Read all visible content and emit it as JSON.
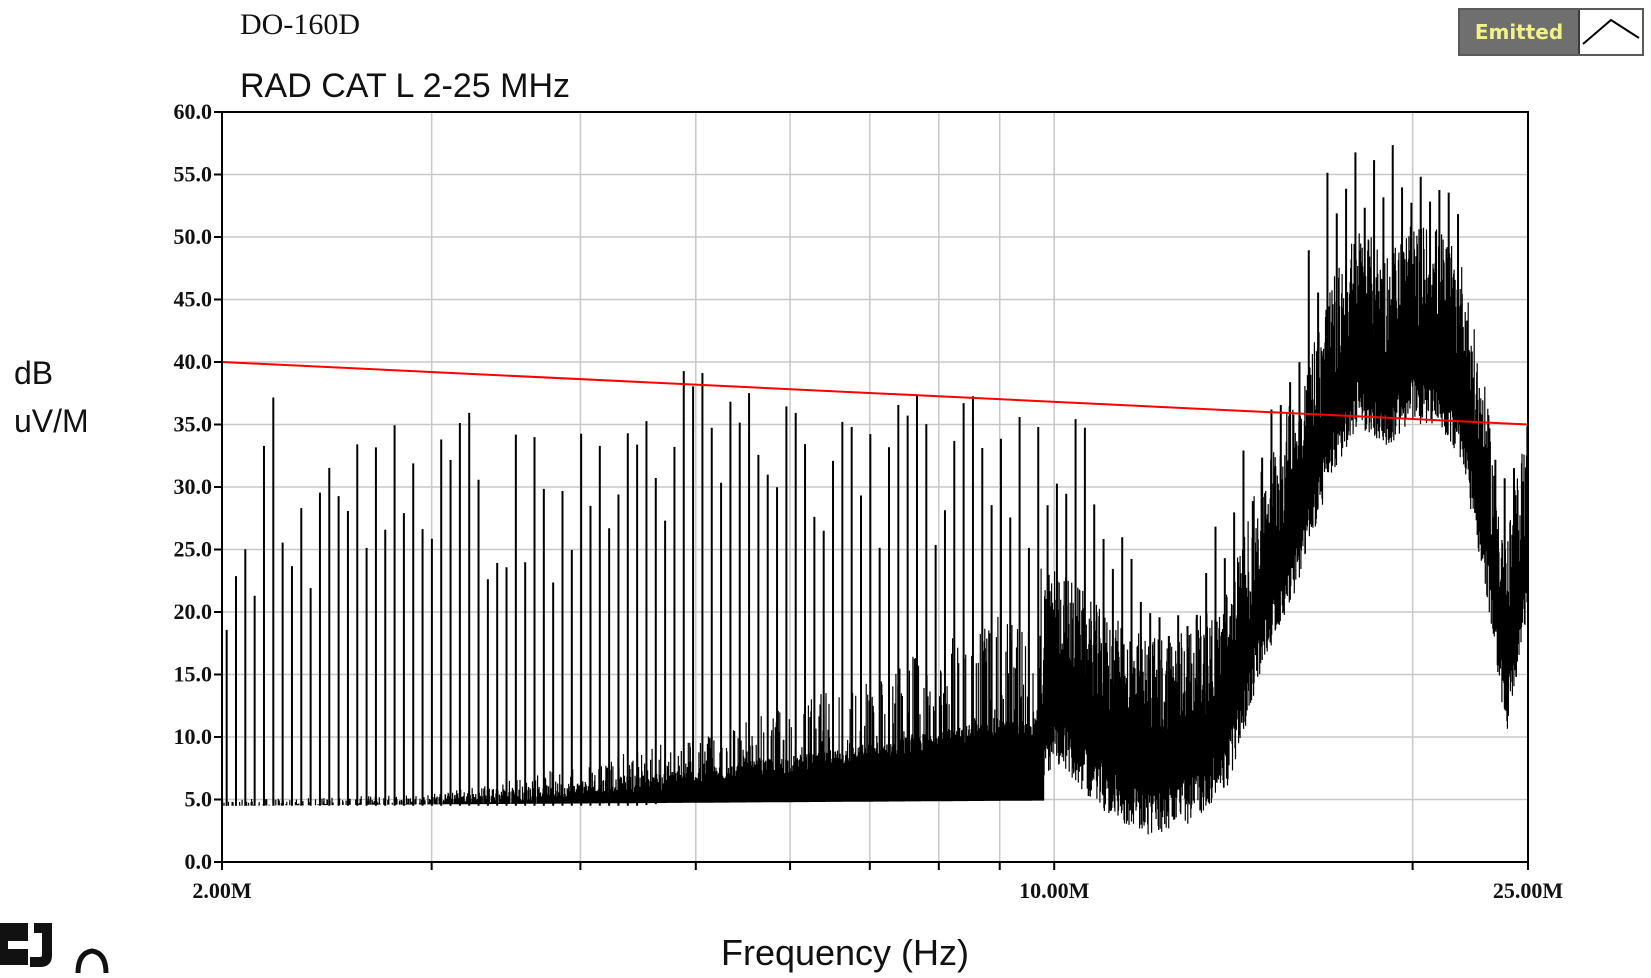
{
  "chart_data": {
    "type": "line",
    "title": "RAD CAT L 2-25 MHz",
    "subtitle": "DO-160D",
    "xlabel": "Frequency (Hz)",
    "ylabel_line1": "dB",
    "ylabel_line2": "uV/M",
    "x_scale": "log",
    "xlim": [
      2000000,
      25000000
    ],
    "ylim": [
      0,
      60
    ],
    "y_ticks": [
      "0.0",
      "5.0",
      "10.0",
      "15.0",
      "20.0",
      "25.0",
      "30.0",
      "35.0",
      "40.0",
      "45.0",
      "50.0",
      "55.0",
      "60.0"
    ],
    "y_tick_values": [
      0,
      5,
      10,
      15,
      20,
      25,
      30,
      35,
      40,
      45,
      50,
      55,
      60
    ],
    "x_tick_labels": [
      "2.00M",
      "10.00M",
      "25.00M"
    ],
    "x_tick_values": [
      2000000,
      10000000,
      25000000
    ],
    "x_grid_values": [
      2000000,
      3000000,
      4000000,
      5000000,
      6000000,
      7000000,
      8000000,
      9000000,
      10000000,
      20000000,
      25000000
    ],
    "grid": true,
    "legend": {
      "label": "Emitted",
      "placement": "top-right"
    },
    "series": [
      {
        "role": "limit",
        "color": "#ff0000",
        "x": [
          2000000,
          25000000
        ],
        "y": [
          40,
          35
        ]
      },
      {
        "role": "emission",
        "color": "#000000",
        "x": [
          2000000,
          2300000,
          2700000,
          3000000,
          3500000,
          4000000,
          4500000,
          5000000,
          6000000,
          7000000,
          8000000,
          9000000,
          9600000,
          9800000,
          10000000,
          10500000,
          11000000,
          12000000,
          13000000,
          14000000,
          15000000,
          16000000,
          17000000,
          18000000,
          19000000,
          20000000,
          21000000,
          22000000,
          23000000,
          24000000,
          25000000
        ],
        "y": [
          4.5,
          4.6,
          4.8,
          5,
          5.5,
          6,
          6.5,
          7,
          8,
          9,
          10,
          11,
          10.5,
          14,
          16,
          14,
          12,
          10,
          11,
          14,
          24,
          30,
          38,
          43,
          41,
          43,
          43,
          40,
          30,
          18,
          28
        ],
        "peaks_x": [
          2000000,
          2200000,
          2400000,
          2600000,
          2800000,
          3000000,
          3300000,
          3600000,
          4000000,
          4300000,
          4700000,
          5000000,
          5500000,
          6000000,
          6500000,
          7000000,
          7500000,
          8000000,
          8500000,
          9000000,
          9500000,
          10000000,
          10500000,
          11000000,
          12000000,
          13000000,
          14000000,
          15000000,
          16000000,
          17000000,
          18000000,
          19000000,
          20000000,
          21000000,
          22000000,
          23000000,
          24000000,
          25000000
        ],
        "peaks_y": [
          20,
          40,
          30,
          39,
          41,
          38,
          36,
          35,
          35,
          38,
          42,
          40,
          40,
          39,
          37,
          38,
          38,
          37,
          38,
          38,
          36,
          41,
          38,
          33,
          26,
          22,
          30,
          37,
          45,
          56,
          58,
          59,
          57,
          56,
          52,
          30,
          38,
          30
        ]
      }
    ]
  }
}
